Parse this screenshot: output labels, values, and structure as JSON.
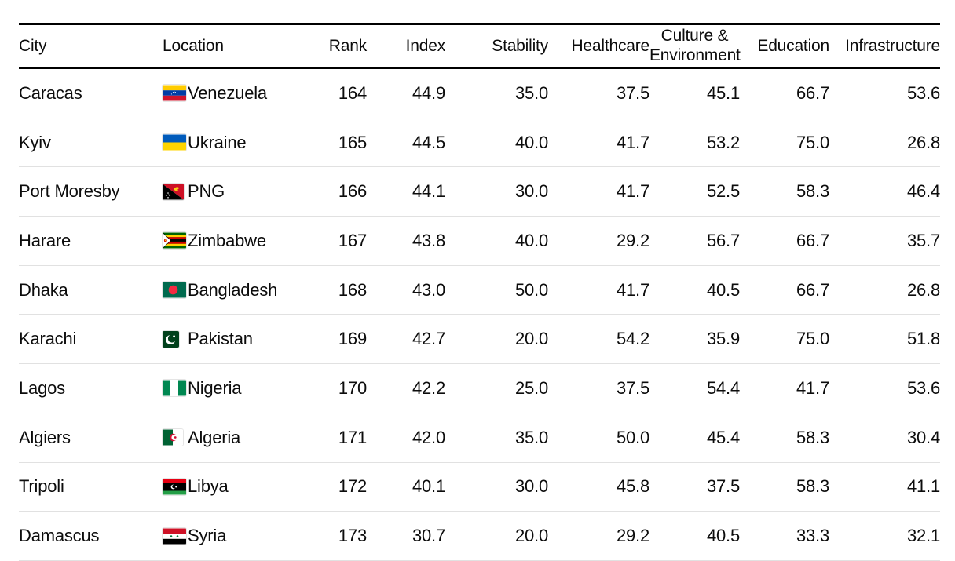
{
  "chart_data": {
    "type": "table",
    "title": "",
    "columns": [
      "City",
      "Location",
      "Rank",
      "Index",
      "Stability",
      "Healthcare",
      "Culture & Environment",
      "Education",
      "Infrastructure"
    ],
    "header": {
      "city": "City",
      "location": "Location",
      "rank": "Rank",
      "index": "Index",
      "stability": "Stability",
      "healthcare": "Healthcare",
      "culture_line1": "Culture &",
      "culture_line2": "Environment",
      "education": "Education",
      "infrastructure": "Infrastructure"
    },
    "rows": [
      {
        "city": "Caracas",
        "country": "Venezuela",
        "flag": "venezuela-flag",
        "rank": "164",
        "index": "44.9",
        "stability": "35.0",
        "healthcare": "37.5",
        "culture": "45.1",
        "education": "66.7",
        "infrastructure": "53.6"
      },
      {
        "city": "Kyiv",
        "country": "Ukraine",
        "flag": "ukraine-flag",
        "rank": "165",
        "index": "44.5",
        "stability": "40.0",
        "healthcare": "41.7",
        "culture": "53.2",
        "education": "75.0",
        "infrastructure": "26.8"
      },
      {
        "city": "Port Moresby",
        "country": "PNG",
        "flag": "papua-new-guinea-flag",
        "rank": "166",
        "index": "44.1",
        "stability": "30.0",
        "healthcare": "41.7",
        "culture": "52.5",
        "education": "58.3",
        "infrastructure": "46.4"
      },
      {
        "city": "Harare",
        "country": "Zimbabwe",
        "flag": "zimbabwe-flag",
        "rank": "167",
        "index": "43.8",
        "stability": "40.0",
        "healthcare": "29.2",
        "culture": "56.7",
        "education": "66.7",
        "infrastructure": "35.7"
      },
      {
        "city": "Dhaka",
        "country": "Bangladesh",
        "flag": "bangladesh-flag",
        "rank": "168",
        "index": "43.0",
        "stability": "50.0",
        "healthcare": "41.7",
        "culture": "40.5",
        "education": "66.7",
        "infrastructure": "26.8"
      },
      {
        "city": "Karachi",
        "country": "Pakistan",
        "flag": "pakistan-flag",
        "rank": "169",
        "index": "42.7",
        "stability": "20.0",
        "healthcare": "54.2",
        "culture": "35.9",
        "education": "75.0",
        "infrastructure": "51.8"
      },
      {
        "city": "Lagos",
        "country": "Nigeria",
        "flag": "nigeria-flag",
        "rank": "170",
        "index": "42.2",
        "stability": "25.0",
        "healthcare": "37.5",
        "culture": "54.4",
        "education": "41.7",
        "infrastructure": "53.6"
      },
      {
        "city": "Algiers",
        "country": "Algeria",
        "flag": "algeria-flag",
        "rank": "171",
        "index": "42.0",
        "stability": "35.0",
        "healthcare": "50.0",
        "culture": "45.4",
        "education": "58.3",
        "infrastructure": "30.4"
      },
      {
        "city": "Tripoli",
        "country": "Libya",
        "flag": "libya-flag",
        "rank": "172",
        "index": "40.1",
        "stability": "30.0",
        "healthcare": "45.8",
        "culture": "37.5",
        "education": "58.3",
        "infrastructure": "41.1"
      },
      {
        "city": "Damascus",
        "country": "Syria",
        "flag": "syria-flag",
        "rank": "173",
        "index": "30.7",
        "stability": "20.0",
        "healthcare": "29.2",
        "culture": "40.5",
        "education": "33.3",
        "infrastructure": "32.1"
      }
    ],
    "layout": {
      "grid": "horizontal-row-dividers",
      "header_rule_color": "#000000",
      "row_divider_color": "#e1e1e1"
    }
  }
}
